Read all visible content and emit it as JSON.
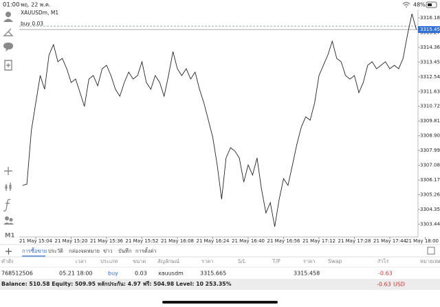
{
  "status_bar": {
    "time": "01:00",
    "date": "พฤ. 22 พ.ค.",
    "battery": "48%"
  },
  "toolbar": {
    "timeframe": "M1"
  },
  "chart_data": {
    "type": "line",
    "title": "XAUUSDm, M1",
    "categories": [
      null,
      null,
      null,
      "21 May 15:04",
      null,
      null,
      null,
      null,
      null,
      null,
      null,
      "21 May 15:20",
      null,
      null,
      null,
      null,
      null,
      null,
      null,
      "21 May 15:36",
      null,
      null,
      null,
      null,
      null,
      null,
      null,
      "21 May 15:52",
      null,
      null,
      null,
      null,
      null,
      null,
      null,
      "21 May 16:08",
      null,
      null,
      null,
      null,
      null,
      null,
      null,
      "21 May 16:24",
      null,
      null,
      null,
      null,
      null,
      null,
      null,
      "21 May 16:40",
      null,
      null,
      null,
      null,
      null,
      null,
      null,
      "21 May 16:56",
      null,
      null,
      null,
      null,
      null,
      null,
      null,
      "21 May 17:12",
      null,
      null,
      null,
      null,
      null,
      null,
      null,
      "21 May 17:28",
      null,
      null,
      null,
      null,
      null,
      null,
      null,
      "21 May 17:44",
      null,
      null,
      null,
      null,
      null,
      null,
      null,
      "21 May 18:00"
    ],
    "series": [
      {
        "color": "#222222",
        "values": [
          3305.83,
          3305.91,
          3309.22,
          3310.92,
          3312.62,
          3311.77,
          3313.89,
          3314.53,
          3313.47,
          3313.68,
          3313.04,
          3312.19,
          3312.4,
          3311.56,
          3310.71,
          3312.4,
          3312.62,
          3311.98,
          3313.04,
          3313.25,
          3312.62,
          3311.77,
          3311.34,
          3312.19,
          3312.83,
          3312.4,
          3312.62,
          3313.47,
          3312.19,
          3311.77,
          3312.62,
          3312.19,
          3311.34,
          3312.62,
          3314.1,
          3313.04,
          3312.62,
          3313.04,
          3312.4,
          3312.83,
          3311.77,
          3310.92,
          3309.86,
          3308.8,
          3307.1,
          3304.98,
          3307.53,
          3308.16,
          3307.95,
          3307.53,
          3306.04,
          3307.1,
          3306.47,
          3307.53,
          3305.62,
          3304.13,
          3304.77,
          3303.28,
          3304.98,
          3306.25,
          3305.83,
          3307.1,
          3308.37,
          3309.44,
          3310.07,
          3309.86,
          3310.92,
          3312.62,
          3313.25,
          3313.89,
          3314.74,
          3313.68,
          3313.47,
          3312.62,
          3312.4,
          3312.62,
          3311.56,
          3312.19,
          3313.25,
          3313.47,
          3313.04,
          3313.25,
          3313.47,
          3313.04,
          3313.25,
          3313.04,
          3313.68,
          3315.16,
          3316.43,
          3315.46,
          null,
          null
        ]
      }
    ],
    "ylim": [
      3302.65,
      3316.69
    ],
    "yticks": [
      {
        "value": 3303.44,
        "label": "3303.440"
      },
      {
        "value": 3304.35,
        "label": "3304.350"
      },
      {
        "value": 3305.26,
        "label": "3305.260"
      },
      {
        "value": 3306.17,
        "label": "3306.170"
      },
      {
        "value": 3307.08,
        "label": "3307.080"
      },
      {
        "value": 3307.99,
        "label": "3307.990"
      },
      {
        "value": 3308.9,
        "label": "3308.900"
      },
      {
        "value": 3309.81,
        "label": "3309.810"
      },
      {
        "value": 3310.72,
        "label": "3310.720"
      },
      {
        "value": 3311.63,
        "label": "3311.630"
      },
      {
        "value": 3312.54,
        "label": "3312.540"
      },
      {
        "value": 3313.45,
        "label": "3313.450"
      },
      {
        "value": 3314.36,
        "label": "3314.360"
      },
      {
        "value": 3315.27,
        "label": "3315.270"
      },
      {
        "value": 3316.18,
        "label": "3316.180"
      }
    ],
    "current_price": 3315.458,
    "buy_line": {
      "label": "buy 0.03",
      "price": 3315.665
    },
    "grid": false
  },
  "tabs": {
    "items": [
      "การซื้อขาย",
      "ประวัติ",
      "กล่องจดหมาย",
      "ข่าว",
      "บันทึก",
      "การตั้งค่า"
    ],
    "active": 0
  },
  "table": {
    "headers": [
      "คำสั่ง",
      "เวลา",
      "ประเภท",
      "ขนาด",
      "สัญลักษณ์",
      "ราคา",
      "S/L",
      "T/P",
      "ราคา",
      "Swap",
      "กำไร",
      "หมายเหตุ"
    ],
    "row": {
      "order": 768512506,
      "time": "05.21 18:00",
      "type": "buy",
      "volume": 0.03,
      "symbol": "xauusdm",
      "open_price": 3315.665,
      "price": 3315.458,
      "profit": -0.63
    }
  },
  "account": {
    "summary": "Balance: 510.58 Equity: 509.95 หลักประกัน: 4.97 ฟรี: 504.98 Level: 10 253.35%",
    "profit": -0.63,
    "currency": "USD"
  }
}
